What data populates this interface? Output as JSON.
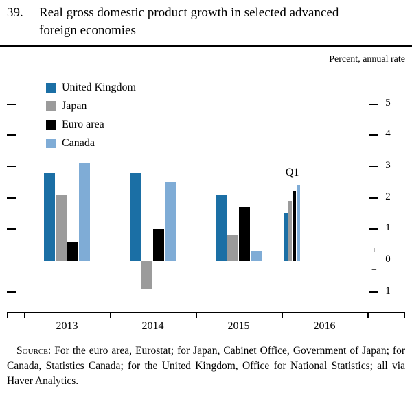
{
  "figure": {
    "number": "39.",
    "title": "Real gross domestic product growth in selected advanced foreign economies"
  },
  "units_label": "Percent, annual rate",
  "chart_data": {
    "type": "bar",
    "title": "Real gross domestic product growth in selected advanced foreign economies",
    "ylabel": "Percent, annual rate",
    "ylim": [
      -1.6,
      6
    ],
    "yticks": [
      5,
      4,
      3,
      2,
      1,
      0,
      -1
    ],
    "zero_axis_signs": [
      "+",
      "−"
    ],
    "grid": false,
    "legend_position": "upper-left",
    "groups": [
      {
        "label": "2013",
        "type": "annual"
      },
      {
        "label": "2014",
        "type": "annual"
      },
      {
        "label": "2015",
        "type": "annual"
      },
      {
        "label": "2016",
        "type": "quarter",
        "annotation": "Q1"
      }
    ],
    "series": [
      {
        "name": "United Kingdom",
        "color": "#1B6FA5",
        "values": [
          2.8,
          2.8,
          2.1,
          1.5
        ]
      },
      {
        "name": "Japan",
        "color": "#9B9B9B",
        "values": [
          2.1,
          -0.9,
          0.8,
          1.9
        ]
      },
      {
        "name": "Euro area",
        "color": "#000000",
        "values": [
          0.6,
          1.0,
          1.7,
          2.2
        ]
      },
      {
        "name": "Canada",
        "color": "#7FACD6",
        "values": [
          3.1,
          2.5,
          0.3,
          2.4
        ]
      }
    ]
  },
  "source": {
    "label": "Source:",
    "text": "For the euro area, Eurostat; for Japan, Cabinet Office, Government of Japan; for Canada, Statistics Canada; for the United Kingdom, Office for National Statistics; all via Haver Analytics."
  }
}
